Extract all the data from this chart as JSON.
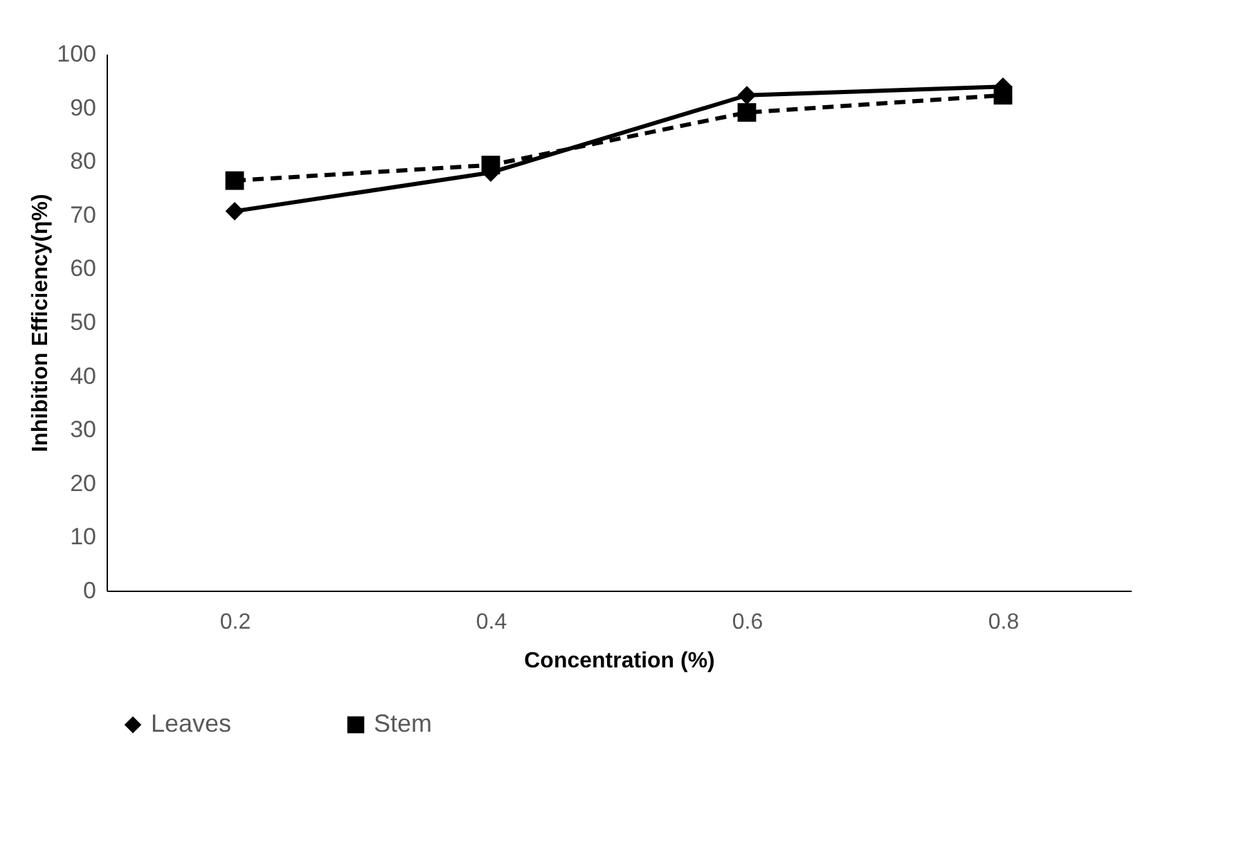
{
  "chart_data": {
    "type": "line",
    "xlabel": "Concentration (%)",
    "ylabel": "Inhibition Efficiency(η%)",
    "categories": [
      "0.2",
      "0.4",
      "0.6",
      "0.8"
    ],
    "series": [
      {
        "name": "Leaves",
        "color": "#000000",
        "marker": "diamond",
        "line_style": "solid",
        "values": [
          70.7,
          77.9,
          92.3,
          93.9
        ]
      },
      {
        "name": "Stem",
        "color": "#000000",
        "marker": "square",
        "line_style": "dashed",
        "values": [
          76.4,
          79.3,
          89.1,
          92.3
        ]
      }
    ],
    "ylim": [
      0,
      100
    ],
    "yticks": [
      0,
      10,
      20,
      30,
      40,
      50,
      60,
      70,
      80,
      90,
      100
    ],
    "grid": false,
    "legend": "bottom"
  }
}
